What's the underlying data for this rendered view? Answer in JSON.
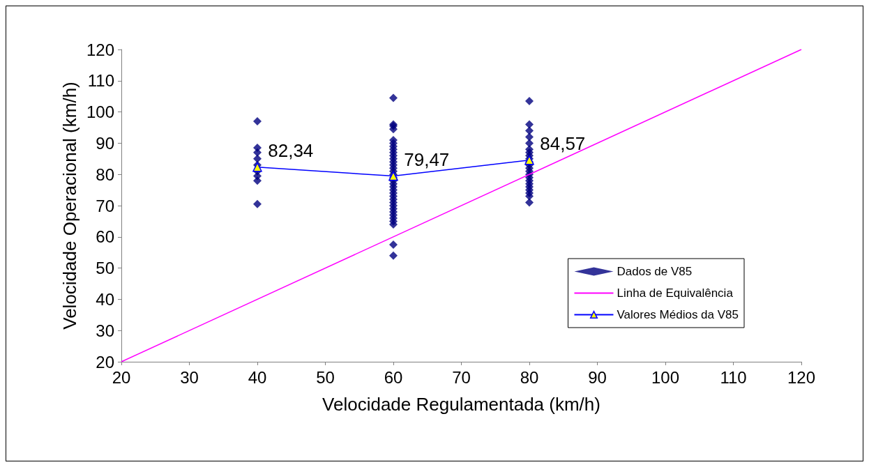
{
  "chart_data": {
    "type": "scatter",
    "xlabel": "Velocidade Regulamentada (km/h)",
    "ylabel": "Velocidade Operacional (km/h)",
    "xlim": [
      20,
      120
    ],
    "xticks": [
      20,
      30,
      40,
      50,
      60,
      70,
      80,
      90,
      100,
      110,
      120
    ],
    "ylim": [
      20,
      120
    ],
    "yticks": [
      20,
      30,
      40,
      50,
      60,
      70,
      80,
      90,
      100,
      110,
      120
    ],
    "grid": false,
    "legend": "right",
    "series": [
      {
        "name": "Dados de V85",
        "type": "scatter",
        "marker": "diamond",
        "color": "#000080",
        "x": [
          40,
          40,
          40,
          40,
          40,
          40,
          40,
          40,
          40,
          60,
          60,
          60,
          60,
          60,
          60,
          60,
          60,
          60,
          60,
          60,
          60,
          60,
          60,
          60,
          60,
          60,
          60,
          60,
          60,
          60,
          60,
          60,
          60,
          60,
          60,
          60,
          60,
          60,
          60,
          60,
          60,
          60,
          60,
          80,
          80,
          80,
          80,
          80,
          80,
          80,
          80,
          80,
          80,
          80,
          80,
          80,
          80,
          80,
          80,
          80,
          80,
          80,
          80,
          80,
          80
        ],
        "values": [
          97,
          88.5,
          87,
          85,
          83,
          81,
          79.5,
          78,
          70.5,
          104.5,
          96,
          95.5,
          94.5,
          91,
          90,
          89,
          88,
          87,
          86,
          85,
          84,
          83,
          82,
          81,
          80,
          79,
          78,
          77,
          76,
          75,
          74,
          73,
          72,
          71,
          70,
          69,
          68,
          67,
          66,
          65,
          64,
          57.5,
          54,
          103.5,
          96,
          94,
          92,
          90,
          88,
          87,
          86,
          85,
          84,
          83,
          82,
          81,
          80,
          79,
          78,
          77,
          76,
          75,
          74,
          73,
          71
        ]
      },
      {
        "name": "Linha de Equivalência",
        "type": "line",
        "marker": "none",
        "color": "#ff00ff",
        "x": [
          20,
          120
        ],
        "values": [
          20,
          120
        ]
      },
      {
        "name": "Valores Médios da V85",
        "type": "line",
        "marker": "triangle",
        "color": "#0000ff",
        "x": [
          40,
          60,
          80
        ],
        "values": [
          82.34,
          79.47,
          84.57
        ],
        "value_labels": [
          "82,34",
          "79,47",
          "84,57"
        ]
      }
    ]
  }
}
